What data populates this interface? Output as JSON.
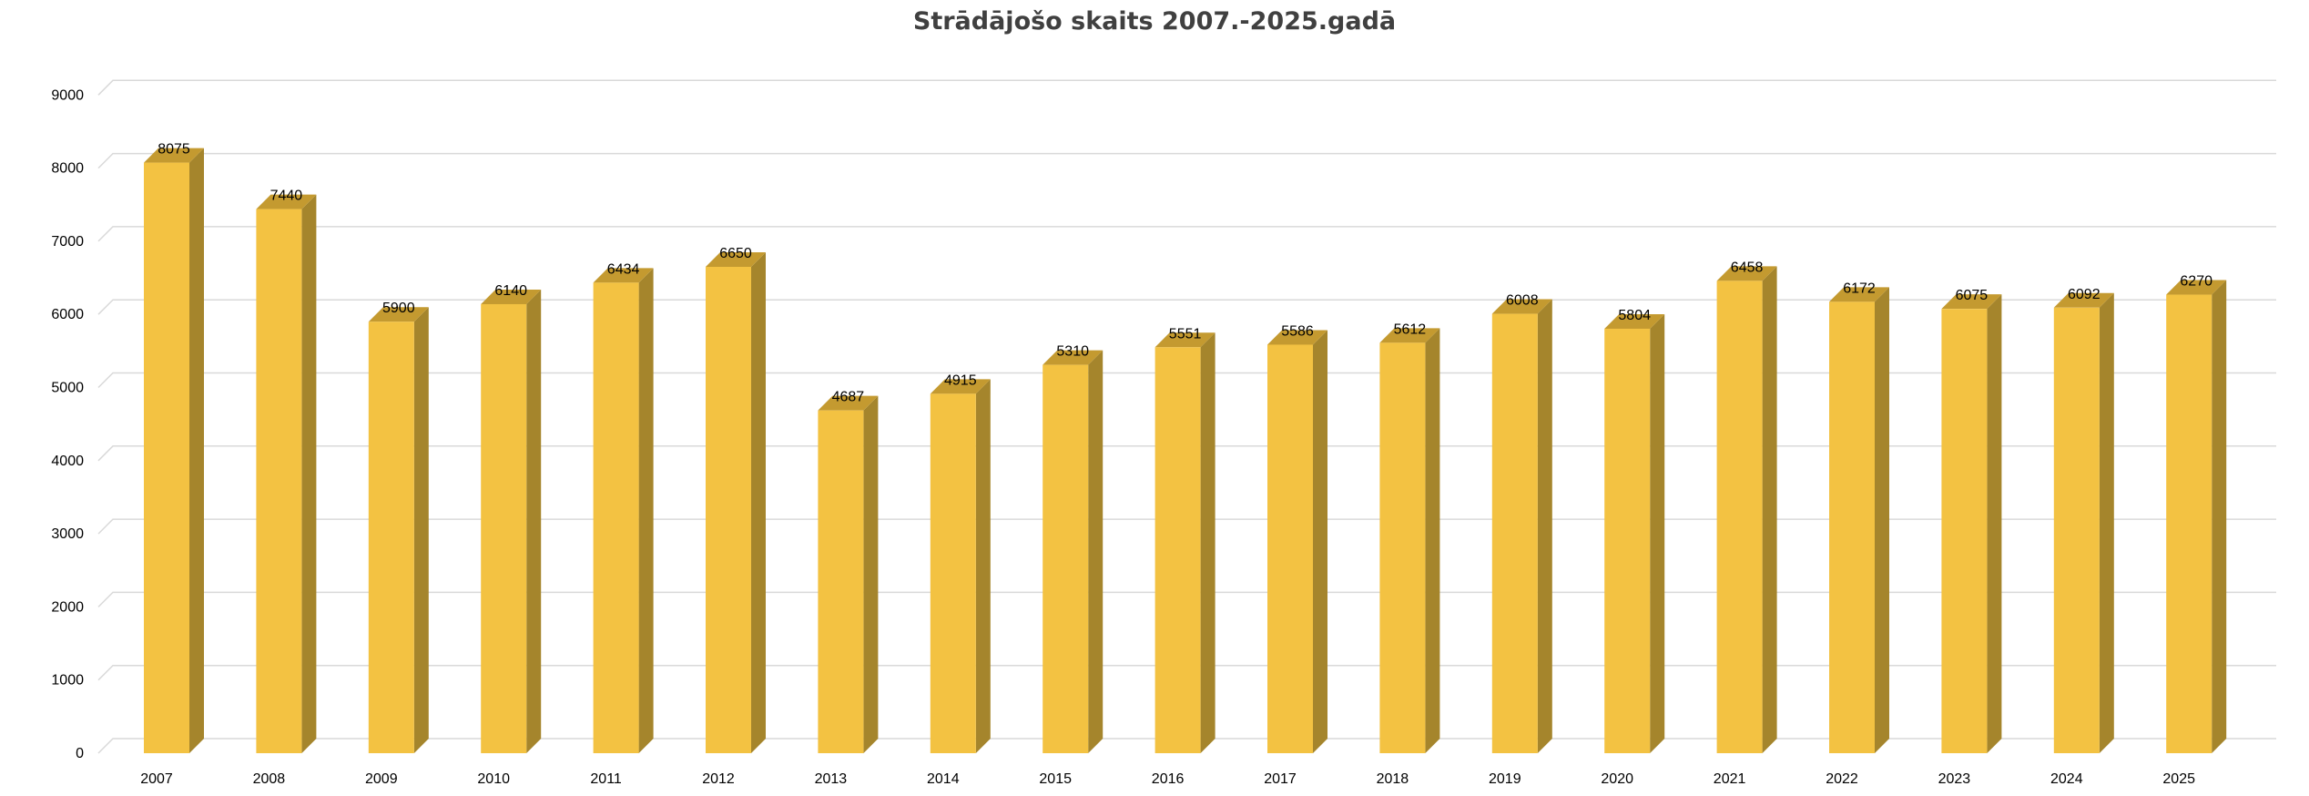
{
  "chart_data": {
    "type": "bar",
    "title": "Strādājošo skaits 2007.-2025.gadā",
    "xlabel": "",
    "ylabel": "",
    "categories": [
      "2007",
      "2008",
      "2009",
      "2010",
      "2011",
      "2012",
      "2013",
      "2014",
      "2015",
      "2016",
      "2017",
      "2018",
      "2019",
      "2020",
      "2021",
      "2022",
      "2023",
      "2024",
      "2025"
    ],
    "values": [
      8075,
      7440,
      5900,
      6140,
      6434,
      6650,
      4687,
      4915,
      5310,
      5551,
      5586,
      5612,
      6008,
      5804,
      6458,
      6172,
      6075,
      6092,
      6270
    ],
    "ylim": [
      0,
      9000
    ],
    "yticks": [
      0,
      1000,
      2000,
      3000,
      4000,
      5000,
      6000,
      7000,
      8000,
      9000
    ],
    "grid": true,
    "legend": "none",
    "style": "3d-column",
    "colors": {
      "front": "#F3C242",
      "top": "#C49A30",
      "side": "#A5852C",
      "grid": "#D9D9D9"
    }
  }
}
